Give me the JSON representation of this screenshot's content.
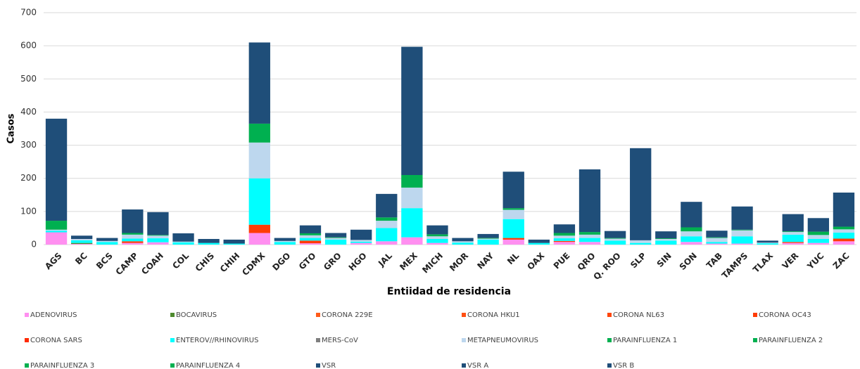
{
  "chart_data": {
    "type": "stacked_bar",
    "y_label": "Casos",
    "x_label": "Entiidad de  residencia",
    "categories": [
      "AGS",
      "BC",
      "BCS",
      "CAMP",
      "COAH",
      "COL",
      "CHIS",
      "CHIH",
      "CDMX",
      "DGO",
      "GTO",
      "GRO",
      "HGO",
      "JAL",
      "MEX",
      "MICH",
      "MOR",
      "NAY",
      "NL",
      "OAX",
      "PUE",
      "QRO",
      "Q. ROO",
      "SLP",
      "SIN",
      "SON",
      "TAB",
      "TAMPS",
      "TLAX",
      "VER",
      "YUC",
      "ZAC"
    ],
    "ylim": [
      0,
      700
    ],
    "yticks": [
      0,
      100,
      200,
      300,
      400,
      500,
      600,
      700
    ],
    "grid": true,
    "series": [
      {
        "name": "ADENOVIRUS",
        "color": "#ff8ff0",
        "values": [
          37,
          2,
          0,
          5,
          7,
          0,
          0,
          0,
          35,
          0,
          4,
          0,
          5,
          10,
          22,
          5,
          0,
          0,
          15,
          0,
          8,
          8,
          0,
          0,
          0,
          8,
          3,
          3,
          0,
          5,
          5,
          10
        ]
      },
      {
        "name": "BOCAVIRUS",
        "color": "#4e8a2e",
        "values": [
          0,
          3,
          0,
          0,
          0,
          0,
          0,
          0,
          0,
          0,
          0,
          0,
          0,
          0,
          0,
          0,
          0,
          0,
          0,
          0,
          0,
          0,
          0,
          0,
          0,
          0,
          0,
          0,
          0,
          0,
          0,
          0
        ]
      },
      {
        "name": "CORONA 229E",
        "color": "#ff5b1a",
        "values": [
          0,
          0,
          0,
          0,
          0,
          0,
          0,
          0,
          0,
          0,
          0,
          0,
          0,
          0,
          0,
          0,
          0,
          0,
          0,
          0,
          0,
          0,
          0,
          0,
          0,
          0,
          0,
          0,
          0,
          0,
          0,
          0
        ]
      },
      {
        "name": "CORONA HKU1",
        "color": "#ff4f12",
        "values": [
          0,
          0,
          0,
          0,
          0,
          0,
          0,
          0,
          0,
          0,
          0,
          0,
          0,
          0,
          0,
          0,
          0,
          0,
          0,
          0,
          0,
          0,
          0,
          0,
          0,
          0,
          0,
          0,
          0,
          0,
          0,
          0
        ]
      },
      {
        "name": "CORONA NL63",
        "color": "#ff460c",
        "values": [
          0,
          0,
          0,
          0,
          0,
          0,
          0,
          0,
          0,
          0,
          0,
          0,
          0,
          0,
          0,
          0,
          0,
          0,
          0,
          0,
          0,
          0,
          0,
          0,
          0,
          0,
          0,
          0,
          0,
          0,
          0,
          0
        ]
      },
      {
        "name": "CORONA OC43",
        "color": "#ff3c05",
        "values": [
          0,
          0,
          0,
          5,
          0,
          0,
          0,
          0,
          25,
          0,
          8,
          0,
          0,
          0,
          0,
          0,
          0,
          0,
          5,
          0,
          3,
          0,
          0,
          0,
          0,
          0,
          0,
          0,
          0,
          3,
          0,
          8
        ]
      },
      {
        "name": "CORONA SARS",
        "color": "#ff2a00",
        "values": [
          0,
          0,
          0,
          0,
          0,
          0,
          0,
          0,
          0,
          0,
          0,
          0,
          0,
          0,
          0,
          0,
          0,
          0,
          0,
          0,
          0,
          0,
          0,
          0,
          0,
          0,
          0,
          0,
          0,
          0,
          0,
          0
        ]
      },
      {
        "name": "ENTEROV//RHINOVIRUS",
        "color": "#00ffff",
        "values": [
          5,
          8,
          8,
          8,
          12,
          7,
          5,
          3,
          140,
          8,
          8,
          15,
          4,
          40,
          88,
          12,
          6,
          15,
          57,
          5,
          8,
          12,
          12,
          5,
          12,
          17,
          5,
          22,
          4,
          22,
          12,
          18
        ]
      },
      {
        "name": "MERS-CoV",
        "color": "#7f7f7f",
        "values": [
          0,
          0,
          0,
          0,
          0,
          0,
          0,
          0,
          0,
          0,
          0,
          0,
          0,
          0,
          0,
          0,
          0,
          0,
          0,
          0,
          0,
          0,
          0,
          0,
          0,
          0,
          0,
          0,
          0,
          0,
          0,
          0
        ]
      },
      {
        "name": "METAPNEUMOVIRUS",
        "color": "#bdd7ee",
        "values": [
          3,
          4,
          3,
          12,
          8,
          2,
          0,
          0,
          108,
          3,
          8,
          5,
          5,
          22,
          62,
          8,
          4,
          3,
          28,
          0,
          8,
          10,
          6,
          8,
          5,
          15,
          12,
          18,
          2,
          8,
          12,
          10
        ]
      },
      {
        "name": "PARAINFLUENZA 1",
        "color": "#00b050",
        "values": [
          27,
          0,
          0,
          5,
          2,
          0,
          0,
          0,
          57,
          0,
          6,
          2,
          0,
          10,
          38,
          6,
          0,
          2,
          5,
          0,
          8,
          8,
          2,
          0,
          2,
          12,
          2,
          2,
          0,
          2,
          10,
          8
        ]
      },
      {
        "name": "PARAINFLUENZA 2",
        "color": "#00b050",
        "values": [
          0,
          0,
          0,
          0,
          0,
          0,
          0,
          0,
          0,
          0,
          0,
          0,
          0,
          0,
          0,
          0,
          0,
          0,
          0,
          0,
          0,
          0,
          0,
          0,
          0,
          0,
          0,
          0,
          0,
          0,
          0,
          0
        ]
      },
      {
        "name": "PARAINFLUENZA 3",
        "color": "#00b050",
        "values": [
          0,
          0,
          0,
          0,
          0,
          0,
          0,
          0,
          0,
          0,
          0,
          0,
          0,
          0,
          0,
          0,
          0,
          0,
          0,
          0,
          0,
          0,
          0,
          0,
          0,
          0,
          0,
          0,
          0,
          0,
          0,
          0
        ]
      },
      {
        "name": "PARAINFLUENZA 4",
        "color": "#00b050",
        "values": [
          0,
          0,
          0,
          0,
          0,
          0,
          0,
          0,
          0,
          0,
          0,
          0,
          0,
          0,
          0,
          0,
          0,
          0,
          0,
          0,
          0,
          0,
          0,
          0,
          0,
          0,
          0,
          0,
          0,
          0,
          0,
          0
        ]
      },
      {
        "name": "VSR",
        "color": "#1f4e79",
        "values": [
          308,
          10,
          9,
          71,
          69,
          25,
          12,
          12,
          245,
          9,
          24,
          13,
          31,
          71,
          387,
          27,
          10,
          12,
          110,
          10,
          26,
          189,
          21,
          278,
          21,
          77,
          20,
          70,
          6,
          52,
          41,
          103
        ]
      },
      {
        "name": "VSR A",
        "color": "#1f4e79",
        "values": [
          0,
          0,
          0,
          0,
          0,
          0,
          0,
          0,
          0,
          0,
          0,
          0,
          0,
          0,
          0,
          0,
          0,
          0,
          0,
          0,
          0,
          0,
          0,
          0,
          0,
          0,
          0,
          0,
          0,
          0,
          0,
          0
        ]
      },
      {
        "name": "VSR B",
        "color": "#1f4e79",
        "values": [
          0,
          0,
          0,
          0,
          0,
          0,
          0,
          0,
          0,
          0,
          0,
          0,
          0,
          0,
          0,
          0,
          0,
          0,
          0,
          0,
          0,
          0,
          0,
          0,
          0,
          0,
          0,
          0,
          0,
          0,
          0,
          0
        ]
      }
    ]
  }
}
